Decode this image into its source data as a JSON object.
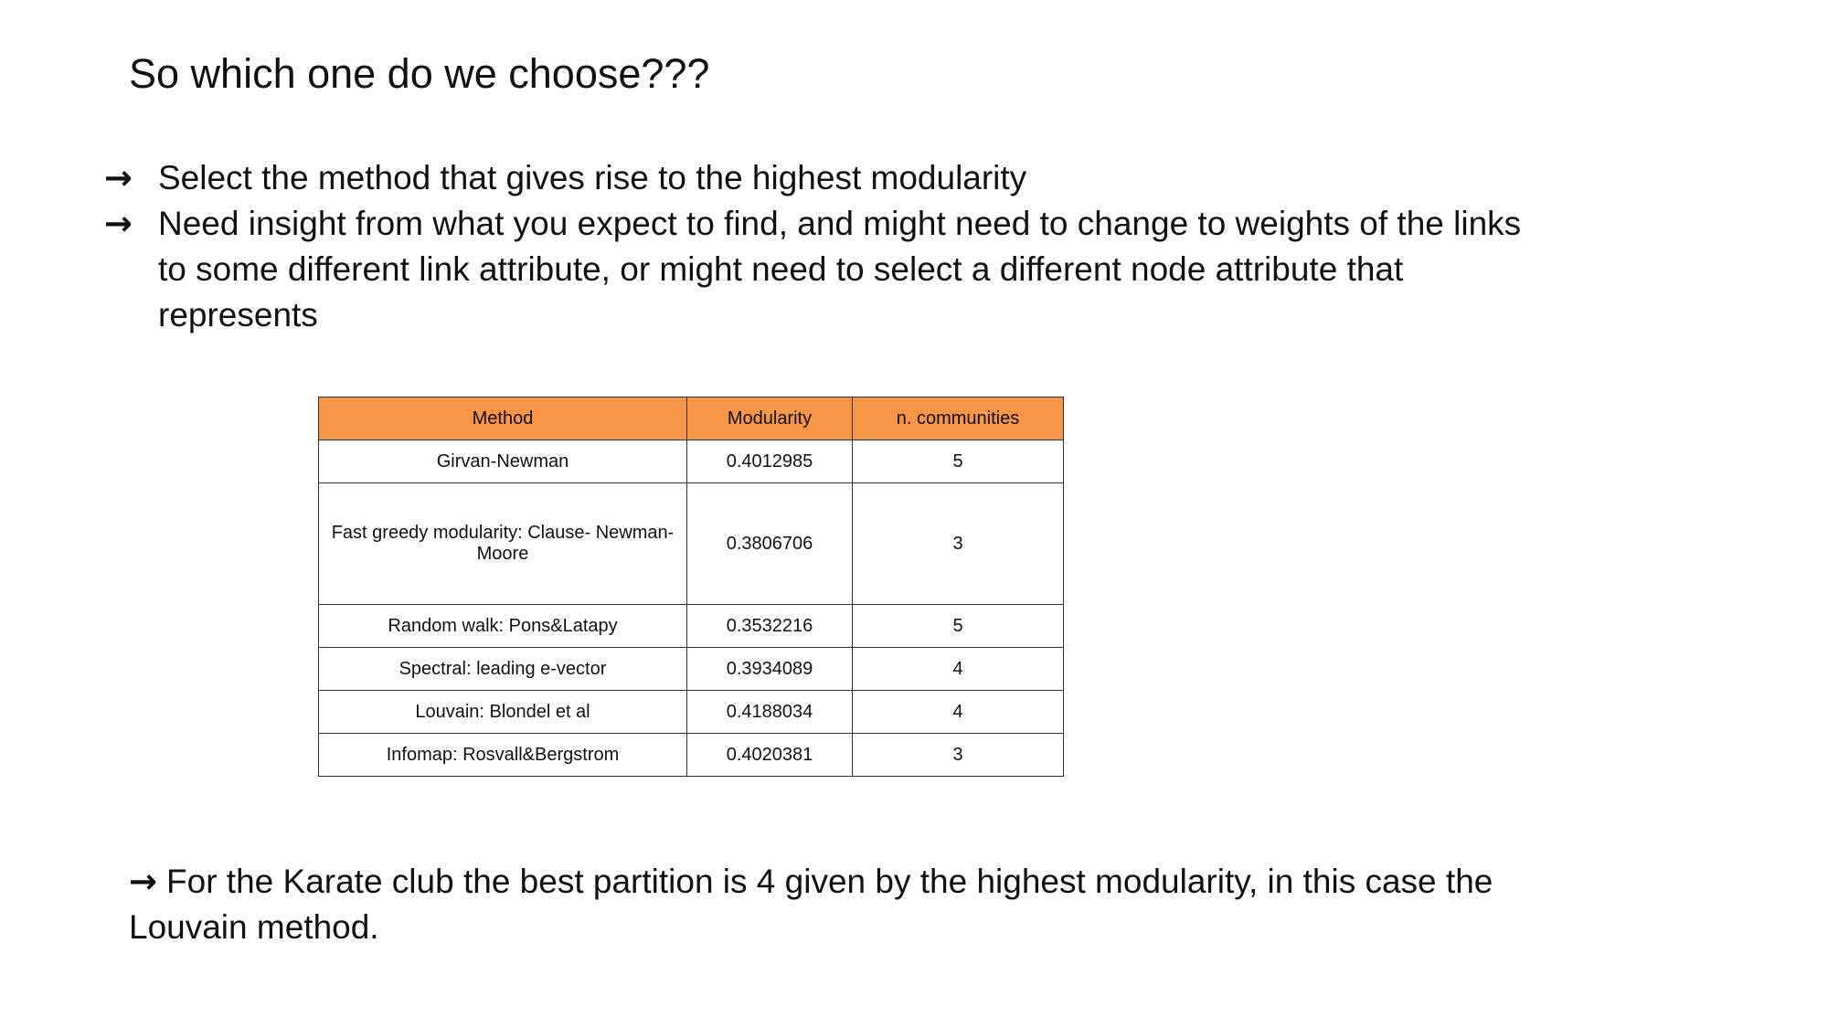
{
  "slide": {
    "title": "So which one do we choose???",
    "bullets": [
      {
        "arrow": "→",
        "text": "Select the method that gives rise to the highest modularity"
      },
      {
        "arrow": "→",
        "text": "Need insight from what you expect to find, and might need to change to weights of the links to some different link attribute, or might need to select a different node attribute that represents"
      }
    ],
    "table": {
      "header_color": "#f79646",
      "columns": [
        "Method",
        "Modularity",
        "n. communities"
      ],
      "rows": [
        {
          "method": "Girvan-Newman",
          "modularity": "0.4012985",
          "communities": "5"
        },
        {
          "method": "Fast greedy modularity: Clause- Newman-Moore",
          "modularity": "0.3806706",
          "communities": "3"
        },
        {
          "method": "Random walk: Pons&Latapy",
          "modularity": "0.3532216",
          "communities": "5"
        },
        {
          "method": "Spectral: leading e-vector",
          "modularity": "0.3934089",
          "communities": "4"
        },
        {
          "method": "Louvain: Blondel et al",
          "modularity": "0.4188034",
          "communities": "4"
        },
        {
          "method": "Infomap: Rosvall&Bergstrom",
          "modularity": "0.4020381",
          "communities": "3"
        }
      ]
    },
    "conclusion": {
      "arrow": "→",
      "text": "For the Karate club the best partition is 4 given by the highest modularity, in this case the Louvain method."
    }
  }
}
